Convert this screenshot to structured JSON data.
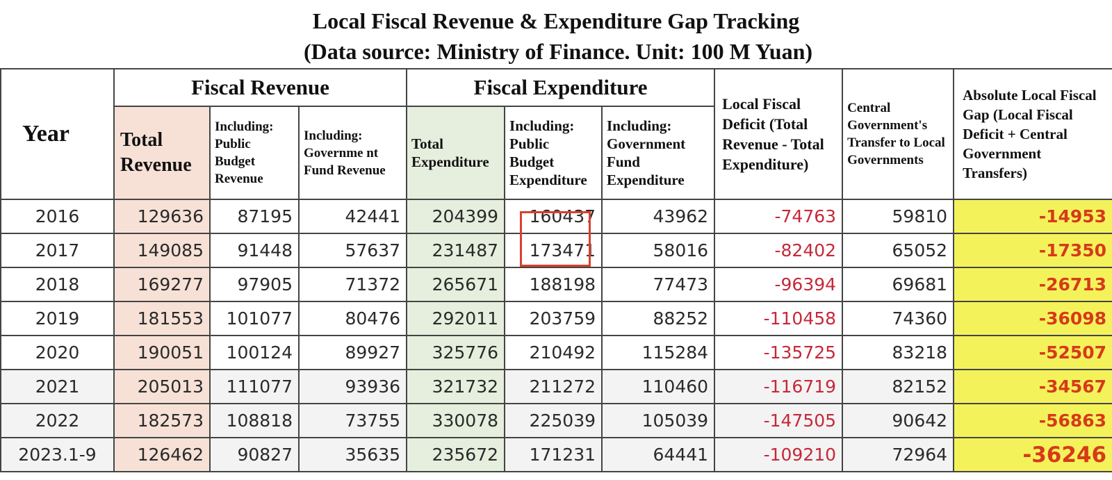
{
  "title": {
    "line1": "Local Fiscal Revenue & Expenditure Gap Tracking",
    "line2": "(Data source: Ministry of Finance. Unit: 100 M Yuan)"
  },
  "headers": {
    "year": "Year",
    "fiscal_revenue": "Fiscal Revenue",
    "fiscal_expenditure": "Fiscal Expenditure",
    "total_revenue": "Total Revenue",
    "public_budget_revenue": "Including: Public Budget Revenue",
    "government_fund_revenue": "Including: Governme nt Fund Revenue",
    "total_expenditure": "Total Expenditure",
    "public_budget_expenditure": "Including: Public Budget Expenditure",
    "government_fund_expenditure": "Including: Government Fund Expenditure",
    "local_fiscal_deficit": "Local Fiscal Deficit (Total Revenue - Total Expenditure)",
    "central_transfer": "Central Government's Transfer to Local Governments",
    "absolute_gap": "Absolute Local Fiscal Gap (Local Fiscal Deficit + Central Government Transfers)"
  },
  "rows": [
    {
      "year": "2016",
      "total_revenue": "129636",
      "public_budget_revenue": "87195",
      "gov_fund_revenue": "42441",
      "total_expenditure": "204399",
      "public_budget_expenditure": "160437",
      "gov_fund_expenditure": "43962",
      "deficit": "-74763",
      "transfer": "59810",
      "gap": "-14953"
    },
    {
      "year": "2017",
      "total_revenue": "149085",
      "public_budget_revenue": "91448",
      "gov_fund_revenue": "57637",
      "total_expenditure": "231487",
      "public_budget_expenditure": "173471",
      "gov_fund_expenditure": "58016",
      "deficit": "-82402",
      "transfer": "65052",
      "gap": "-17350"
    },
    {
      "year": "2018",
      "total_revenue": "169277",
      "public_budget_revenue": "97905",
      "gov_fund_revenue": "71372",
      "total_expenditure": "265671",
      "public_budget_expenditure": "188198",
      "gov_fund_expenditure": "77473",
      "deficit": "-96394",
      "transfer": "69681",
      "gap": "-26713"
    },
    {
      "year": "2019",
      "total_revenue": "181553",
      "public_budget_revenue": "101077",
      "gov_fund_revenue": "80476",
      "total_expenditure": "292011",
      "public_budget_expenditure": "203759",
      "gov_fund_expenditure": "88252",
      "deficit": "-110458",
      "transfer": "74360",
      "gap": "-36098"
    },
    {
      "year": "2020",
      "total_revenue": "190051",
      "public_budget_revenue": "100124",
      "gov_fund_revenue": "89927",
      "total_expenditure": "325776",
      "public_budget_expenditure": "210492",
      "gov_fund_expenditure": "115284",
      "deficit": "-135725",
      "transfer": "83218",
      "gap": "-52507"
    },
    {
      "year": "2021",
      "total_revenue": "205013",
      "public_budget_revenue": "111077",
      "gov_fund_revenue": "93936",
      "total_expenditure": "321732",
      "public_budget_expenditure": "211272",
      "gov_fund_expenditure": "110460",
      "deficit": "-116719",
      "transfer": "82152",
      "gap": "-34567"
    },
    {
      "year": "2022",
      "total_revenue": "182573",
      "public_budget_revenue": "108818",
      "gov_fund_revenue": "73755",
      "total_expenditure": "330078",
      "public_budget_expenditure": "225039",
      "gov_fund_expenditure": "105039",
      "deficit": "-147505",
      "transfer": "90642",
      "gap": "-56863"
    },
    {
      "year": "2023.1-9",
      "total_revenue": "126462",
      "public_budget_revenue": "90827",
      "gov_fund_revenue": "35635",
      "total_expenditure": "235672",
      "public_budget_expenditure": "171231",
      "gov_fund_expenditure": "64441",
      "deficit": "-109210",
      "transfer": "72964",
      "gap": "-36246"
    }
  ],
  "colors": {
    "revenue_column": "#f7e1d6",
    "expenditure_column": "#e6eedd",
    "gap_column": "#f4f25a",
    "negative_text": "#c62839",
    "gap_text": "#d63a1a",
    "highlight_box": "#d8412d"
  }
}
